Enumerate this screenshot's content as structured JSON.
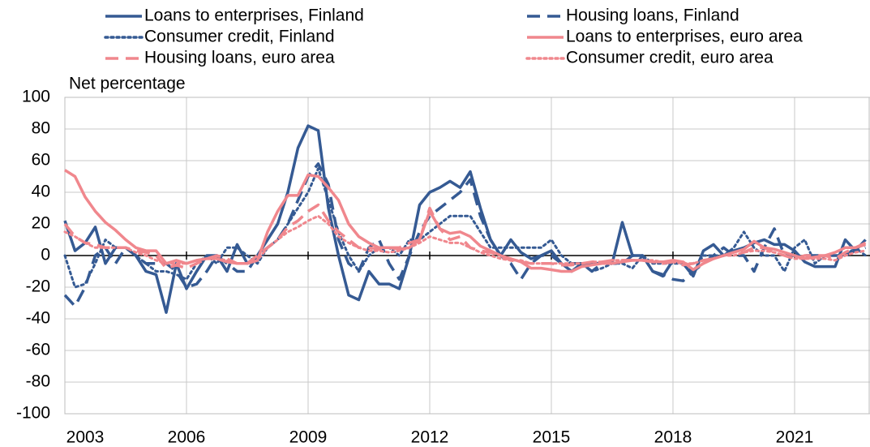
{
  "chart_data": {
    "type": "line",
    "y_axis_label": "Net percentage",
    "categories": [
      "2003",
      null,
      null,
      null,
      null,
      null,
      null,
      null,
      null,
      null,
      null,
      null,
      "2006",
      null,
      null,
      null,
      null,
      null,
      null,
      null,
      null,
      null,
      null,
      null,
      "2009",
      null,
      null,
      null,
      null,
      null,
      null,
      null,
      null,
      null,
      null,
      null,
      "2012",
      null,
      null,
      null,
      null,
      null,
      null,
      null,
      null,
      null,
      null,
      null,
      "2015",
      null,
      null,
      null,
      null,
      null,
      null,
      null,
      null,
      null,
      null,
      null,
      "2018",
      null,
      null,
      null,
      null,
      null,
      null,
      null,
      null,
      null,
      null,
      null,
      "2021",
      null,
      null,
      null,
      null,
      null,
      null,
      null
    ],
    "ylim": [
      -100,
      100
    ],
    "yticks": [
      -100,
      -80,
      -60,
      -40,
      -20,
      0,
      20,
      40,
      60,
      80,
      100
    ],
    "grid": true,
    "legend": "top",
    "series": [
      {
        "name": "Loans to enterprises, Finland",
        "color": "#355a93",
        "style": "solid",
        "values": [
          22,
          3,
          8,
          18,
          -5,
          5,
          5,
          0,
          -10,
          -12,
          -36,
          -5,
          -21,
          -10,
          0,
          0,
          -10,
          7,
          -5,
          0,
          10,
          20,
          40,
          68,
          82,
          79,
          30,
          0,
          -25,
          -28,
          -10,
          -18,
          -18,
          -21,
          0,
          32,
          40,
          43,
          47,
          43,
          53,
          30,
          10,
          0,
          10,
          2,
          -2,
          0,
          3,
          -5,
          -10,
          -5,
          -5,
          -5,
          -5,
          21,
          0,
          0,
          -10,
          -13,
          -3,
          -5,
          -13,
          3,
          7,
          0,
          3,
          5,
          8,
          10,
          7,
          7,
          3,
          -4,
          -7,
          -7,
          -7,
          10,
          3,
          10
        ]
      },
      {
        "name": "Housing loans, Finland",
        "color": "#355a93",
        "style": "dashed",
        "values": [
          -25,
          -32,
          -20,
          0,
          5,
          -5,
          5,
          0,
          -5,
          -5,
          -5,
          -10,
          -20,
          -18,
          -10,
          0,
          -5,
          -10,
          -10,
          0,
          5,
          10,
          20,
          35,
          50,
          58,
          45,
          10,
          -5,
          -10,
          5,
          10,
          -5,
          -15,
          0,
          15,
          25,
          30,
          35,
          40,
          48,
          25,
          10,
          0,
          -5,
          -15,
          -5,
          0,
          0,
          -5,
          -5,
          -5,
          -10,
          -5,
          -5,
          -5,
          0,
          0,
          -10,
          -12,
          -15,
          -16,
          -10,
          -5,
          0,
          5,
          0,
          0,
          -10,
          5,
          17,
          0,
          0,
          0,
          0,
          0,
          0,
          0,
          3,
          5
        ]
      },
      {
        "name": "Consumer credit, Finland",
        "color": "#355a93",
        "style": "dotted",
        "values": [
          0,
          -20,
          -18,
          -5,
          10,
          5,
          5,
          0,
          -5,
          -10,
          -10,
          -12,
          -15,
          -5,
          0,
          -5,
          5,
          5,
          0,
          -5,
          5,
          10,
          20,
          30,
          40,
          55,
          35,
          15,
          0,
          -10,
          0,
          5,
          5,
          0,
          10,
          10,
          15,
          20,
          25,
          25,
          25,
          15,
          5,
          5,
          5,
          5,
          5,
          5,
          10,
          0,
          -5,
          -5,
          -10,
          -8,
          -5,
          -5,
          -8,
          0,
          -5,
          -5,
          -5,
          -5,
          -10,
          0,
          0,
          0,
          5,
          15,
          5,
          0,
          0,
          -10,
          5,
          10,
          -5,
          0,
          0,
          0,
          5,
          0
        ]
      },
      {
        "name": "Loans to enterprises, euro area",
        "color": "#f0878d",
        "style": "solid",
        "values": [
          54,
          50,
          37,
          28,
          21,
          16,
          10,
          5,
          3,
          3,
          -5,
          -3,
          -5,
          -3,
          -2,
          -2,
          -4,
          -5,
          -5,
          -3,
          15,
          28,
          38,
          38,
          51,
          50,
          43,
          35,
          20,
          12,
          8,
          5,
          5,
          4,
          5,
          10,
          28,
          17,
          14,
          15,
          12,
          6,
          3,
          0,
          -2,
          -4,
          -8,
          -8,
          -9,
          -10,
          -10,
          -7,
          -6,
          -5,
          -5,
          -4,
          -3,
          -3,
          -4,
          -4,
          -3,
          -4,
          -9,
          -5,
          -2,
          0,
          2,
          4,
          9,
          5,
          4,
          2,
          0,
          -2,
          -1,
          0,
          2,
          5,
          5,
          7
        ]
      },
      {
        "name": "Housing loans, euro area",
        "color": "#f0878d",
        "style": "dashed",
        "values": [
          20,
          12,
          8,
          7,
          5,
          5,
          5,
          3,
          2,
          0,
          -8,
          -6,
          -8,
          -5,
          -2,
          0,
          -2,
          -5,
          -5,
          0,
          5,
          10,
          18,
          22,
          28,
          32,
          22,
          15,
          10,
          5,
          5,
          4,
          5,
          5,
          8,
          10,
          30,
          17,
          10,
          12,
          5,
          3,
          2,
          0,
          -3,
          -4,
          -5,
          -5,
          -5,
          -6,
          -6,
          -5,
          -4,
          -4,
          -3,
          -3,
          -3,
          -3,
          -4,
          -5,
          -4,
          -6,
          -5,
          -3,
          -2,
          0,
          2,
          2,
          5,
          5,
          2,
          0,
          -2,
          0,
          0,
          0,
          -2,
          2,
          5,
          8
        ]
      },
      {
        "name": "Consumer credit, euro area",
        "color": "#f0878d",
        "style": "dotted",
        "values": [
          15,
          12,
          8,
          5,
          5,
          5,
          5,
          2,
          0,
          -3,
          -5,
          -5,
          -5,
          -3,
          -2,
          -2,
          -3,
          -5,
          -5,
          -3,
          5,
          10,
          15,
          18,
          22,
          25,
          20,
          12,
          8,
          5,
          3,
          3,
          2,
          3,
          5,
          8,
          12,
          10,
          8,
          8,
          5,
          2,
          0,
          -2,
          -3,
          -3,
          -5,
          -5,
          -5,
          -5,
          -5,
          -5,
          -4,
          -4,
          -3,
          -3,
          -3,
          -3,
          -3,
          -4,
          -4,
          -5,
          -5,
          -3,
          -2,
          0,
          0,
          2,
          3,
          3,
          2,
          0,
          -2,
          -2,
          -2,
          -2,
          -3,
          0,
          2,
          3
        ]
      }
    ]
  }
}
